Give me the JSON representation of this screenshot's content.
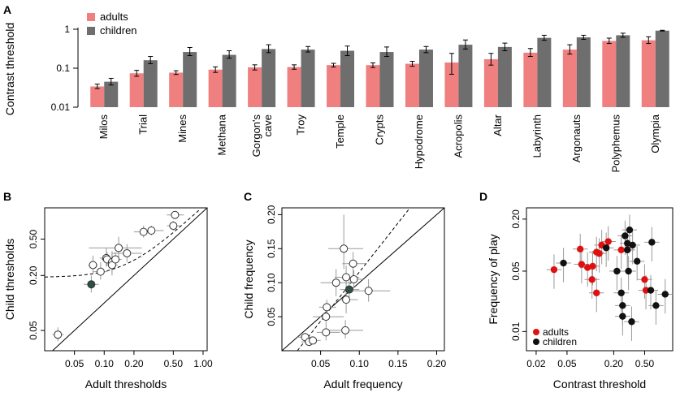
{
  "panels": {
    "A": "A",
    "B": "B",
    "C": "C",
    "D": "D"
  },
  "chart_data": [
    {
      "id": "A",
      "type": "bar",
      "scale": "log10",
      "ylabel": "Contrast threshold",
      "yticks": [
        "0.01",
        "0.1",
        "1"
      ],
      "ylim": [
        0.01,
        1.1
      ],
      "categories": [
        "Milos",
        "Trial",
        "Mines",
        "Methana",
        "Gorgon's cave",
        "Troy",
        "Temple",
        "Crypts",
        "Hypodrome",
        "Acropolis",
        "Altar",
        "Labyrinth",
        "Argonauts",
        "Polyphemus",
        "Olympia"
      ],
      "category_lines": [
        [
          "Milos"
        ],
        [
          "Trial"
        ],
        [
          "Mines"
        ],
        [
          "Methana"
        ],
        [
          "Gorgon's",
          "cave"
        ],
        [
          "Troy"
        ],
        [
          "Temple"
        ],
        [
          "Crypts"
        ],
        [
          "Hypodrome"
        ],
        [
          "Acropolis"
        ],
        [
          "Altar"
        ],
        [
          "Labyrinth"
        ],
        [
          "Argonauts"
        ],
        [
          "Polyphemus"
        ],
        [
          "Olympia"
        ]
      ],
      "series": [
        {
          "name": "adults",
          "color": "#f08080",
          "values": [
            0.034,
            0.074,
            0.077,
            0.092,
            0.105,
            0.107,
            0.12,
            0.12,
            0.13,
            0.14,
            0.17,
            0.25,
            0.3,
            0.5,
            0.52
          ],
          "err_low": [
            0.03,
            0.062,
            0.069,
            0.078,
            0.09,
            0.094,
            0.107,
            0.104,
            0.112,
            0.07,
            0.12,
            0.2,
            0.23,
            0.43,
            0.43
          ],
          "err_high": [
            0.039,
            0.088,
            0.086,
            0.108,
            0.122,
            0.122,
            0.133,
            0.137,
            0.15,
            0.24,
            0.24,
            0.32,
            0.4,
            0.59,
            0.64
          ]
        },
        {
          "name": "children",
          "color": "#6e6e6e",
          "values": [
            0.045,
            0.16,
            0.26,
            0.22,
            0.31,
            0.3,
            0.28,
            0.26,
            0.3,
            0.4,
            0.35,
            0.6,
            0.62,
            0.7,
            0.92
          ],
          "err_low": [
            0.037,
            0.13,
            0.21,
            0.18,
            0.25,
            0.26,
            0.21,
            0.2,
            0.25,
            0.31,
            0.28,
            0.52,
            0.55,
            0.62,
            0.9
          ],
          "err_high": [
            0.055,
            0.2,
            0.34,
            0.28,
            0.4,
            0.36,
            0.37,
            0.35,
            0.36,
            0.53,
            0.44,
            0.7,
            0.7,
            0.79,
            0.94
          ]
        }
      ]
    },
    {
      "id": "B",
      "type": "scatter",
      "scale": "log10",
      "xlabel": "Adult thresholds",
      "ylabel": "Child thresholds",
      "xticks": [
        "0.05",
        "0.10",
        "0.20",
        "0.50",
        "1.00"
      ],
      "yticks": [
        "0.05",
        "0.20",
        "0.50"
      ],
      "xlim": [
        0.025,
        1.1
      ],
      "ylim": [
        0.03,
        1.1
      ],
      "points": [
        {
          "x": 0.034,
          "y": 0.045,
          "xl": 0.03,
          "xh": 0.039,
          "yl": 0.038,
          "yh": 0.054
        },
        {
          "x": 0.074,
          "y": 0.16,
          "xl": 0.062,
          "xh": 0.088,
          "yl": 0.13,
          "yh": 0.2,
          "highlight": true
        },
        {
          "x": 0.077,
          "y": 0.26,
          "xl": 0.069,
          "xh": 0.086,
          "yl": 0.21,
          "yh": 0.33
        },
        {
          "x": 0.092,
          "y": 0.22,
          "xl": 0.078,
          "xh": 0.108,
          "yl": 0.18,
          "yh": 0.28
        },
        {
          "x": 0.105,
          "y": 0.31,
          "xl": 0.09,
          "xh": 0.122,
          "yl": 0.25,
          "yh": 0.4
        },
        {
          "x": 0.107,
          "y": 0.3,
          "xl": 0.094,
          "xh": 0.122,
          "yl": 0.26,
          "yh": 0.36
        },
        {
          "x": 0.12,
          "y": 0.28,
          "xl": 0.107,
          "xh": 0.133,
          "yl": 0.21,
          "yh": 0.37
        },
        {
          "x": 0.12,
          "y": 0.26,
          "xl": 0.104,
          "xh": 0.137,
          "yl": 0.2,
          "yh": 0.35
        },
        {
          "x": 0.13,
          "y": 0.3,
          "xl": 0.112,
          "xh": 0.15,
          "yl": 0.25,
          "yh": 0.36
        },
        {
          "x": 0.14,
          "y": 0.4,
          "xl": 0.07,
          "xh": 0.24,
          "yl": 0.31,
          "yh": 0.53
        },
        {
          "x": 0.17,
          "y": 0.35,
          "xl": 0.12,
          "xh": 0.24,
          "yl": 0.28,
          "yh": 0.44
        },
        {
          "x": 0.25,
          "y": 0.6,
          "xl": 0.2,
          "xh": 0.32,
          "yl": 0.52,
          "yh": 0.7
        },
        {
          "x": 0.3,
          "y": 0.62,
          "xl": 0.23,
          "xh": 0.4,
          "yl": 0.55,
          "yh": 0.7
        },
        {
          "x": 0.5,
          "y": 0.7,
          "xl": 0.43,
          "xh": 0.59,
          "yl": 0.62,
          "yh": 0.79
        },
        {
          "x": 0.52,
          "y": 0.92,
          "xl": 0.43,
          "xh": 0.64,
          "yl": 0.9,
          "yh": 0.94
        }
      ],
      "identity_line": true,
      "fit_curve": "dashed"
    },
    {
      "id": "C",
      "type": "scatter",
      "scale": "linear",
      "xlabel": "Adult frequency",
      "ylabel": "Child frequency",
      "xticks": [
        "0.05",
        "0.10",
        "0.15",
        "0.20"
      ],
      "yticks": [
        "0.05",
        "0.10",
        "0.15",
        "0.20"
      ],
      "xlim": [
        0,
        0.21
      ],
      "ylim": [
        0,
        0.21
      ],
      "points": [
        {
          "x": 0.03,
          "y": 0.02,
          "xl": 0.02,
          "xh": 0.04,
          "yl": 0.014,
          "yh": 0.026
        },
        {
          "x": 0.035,
          "y": 0.013,
          "xl": 0.025,
          "xh": 0.045,
          "yl": 0.008,
          "yh": 0.018
        },
        {
          "x": 0.04,
          "y": 0.015,
          "xl": 0.03,
          "xh": 0.05,
          "yl": 0.01,
          "yh": 0.02
        },
        {
          "x": 0.057,
          "y": 0.027,
          "xl": 0.045,
          "xh": 0.075,
          "yl": 0.015,
          "yh": 0.04
        },
        {
          "x": 0.057,
          "y": 0.05,
          "xl": 0.04,
          "xh": 0.08,
          "yl": 0.04,
          "yh": 0.06
        },
        {
          "x": 0.058,
          "y": 0.064,
          "xl": 0.048,
          "xh": 0.07,
          "yl": 0.055,
          "yh": 0.075
        },
        {
          "x": 0.07,
          "y": 0.1,
          "xl": 0.05,
          "xh": 0.095,
          "yl": 0.08,
          "yh": 0.12
        },
        {
          "x": 0.08,
          "y": 0.15,
          "xl": 0.06,
          "xh": 0.105,
          "yl": 0.12,
          "yh": 0.2
        },
        {
          "x": 0.082,
          "y": 0.03,
          "xl": 0.06,
          "xh": 0.105,
          "yl": 0.018,
          "yh": 0.045
        },
        {
          "x": 0.083,
          "y": 0.075,
          "xl": 0.07,
          "xh": 0.098,
          "yl": 0.055,
          "yh": 0.095
        },
        {
          "x": 0.083,
          "y": 0.108,
          "xl": 0.068,
          "xh": 0.1,
          "yl": 0.09,
          "yh": 0.125
        },
        {
          "x": 0.087,
          "y": 0.09,
          "xl": 0.075,
          "xh": 0.1,
          "yl": 0.078,
          "yh": 0.102,
          "highlight": true
        },
        {
          "x": 0.092,
          "y": 0.128,
          "xl": 0.078,
          "xh": 0.108,
          "yl": 0.11,
          "yh": 0.145
        },
        {
          "x": 0.093,
          "y": 0.105,
          "xl": 0.082,
          "xh": 0.105,
          "yl": 0.092,
          "yh": 0.118
        },
        {
          "x": 0.112,
          "y": 0.088,
          "xl": 0.09,
          "xh": 0.14,
          "yl": 0.072,
          "yh": 0.105
        }
      ],
      "identity_line": true,
      "fit_curve": "dashed"
    },
    {
      "id": "D",
      "type": "scatter",
      "scale": "log10",
      "xlabel": "Contrast threshold",
      "ylabel": "Frequency of play",
      "xticks": [
        "0.02",
        "0.05",
        "0.20",
        "0.50"
      ],
      "yticks": [
        "0.01",
        "0.05",
        "0.20"
      ],
      "xlim": [
        0.015,
        1.15
      ],
      "ylim": [
        0.006,
        0.27
      ],
      "legend": [
        "adults",
        "children"
      ],
      "series": [
        {
          "name": "adults",
          "color": "#e01010",
          "points": [
            {
              "x": 0.034,
              "y": 0.052
            },
            {
              "x": 0.074,
              "y": 0.09
            },
            {
              "x": 0.077,
              "y": 0.06
            },
            {
              "x": 0.092,
              "y": 0.055
            },
            {
              "x": 0.105,
              "y": 0.04
            },
            {
              "x": 0.107,
              "y": 0.057
            },
            {
              "x": 0.12,
              "y": 0.083
            },
            {
              "x": 0.12,
              "y": 0.028
            },
            {
              "x": 0.13,
              "y": 0.08
            },
            {
              "x": 0.14,
              "y": 0.1
            },
            {
              "x": 0.17,
              "y": 0.11
            },
            {
              "x": 0.25,
              "y": 0.088
            },
            {
              "x": 0.3,
              "y": 0.088
            },
            {
              "x": 0.5,
              "y": 0.04
            },
            {
              "x": 0.52,
              "y": 0.03
            }
          ]
        },
        {
          "name": "children",
          "color": "#111111",
          "points": [
            {
              "x": 0.045,
              "y": 0.062
            },
            {
              "x": 0.16,
              "y": 0.093
            },
            {
              "x": 0.26,
              "y": 0.015
            },
            {
              "x": 0.22,
              "y": 0.05
            },
            {
              "x": 0.31,
              "y": 0.05
            },
            {
              "x": 0.3,
              "y": 0.088
            },
            {
              "x": 0.28,
              "y": 0.128
            },
            {
              "x": 0.26,
              "y": 0.02
            },
            {
              "x": 0.3,
              "y": 0.105
            },
            {
              "x": 0.4,
              "y": 0.065
            },
            {
              "x": 0.35,
              "y": 0.1
            },
            {
              "x": 0.6,
              "y": 0.03
            },
            {
              "x": 0.62,
              "y": 0.108
            },
            {
              "x": 0.7,
              "y": 0.02
            },
            {
              "x": 0.92,
              "y": 0.027
            },
            {
              "x": 0.32,
              "y": 0.15
            },
            {
              "x": 0.34,
              "y": 0.013
            },
            {
              "x": 0.25,
              "y": 0.028
            }
          ]
        }
      ]
    }
  ]
}
